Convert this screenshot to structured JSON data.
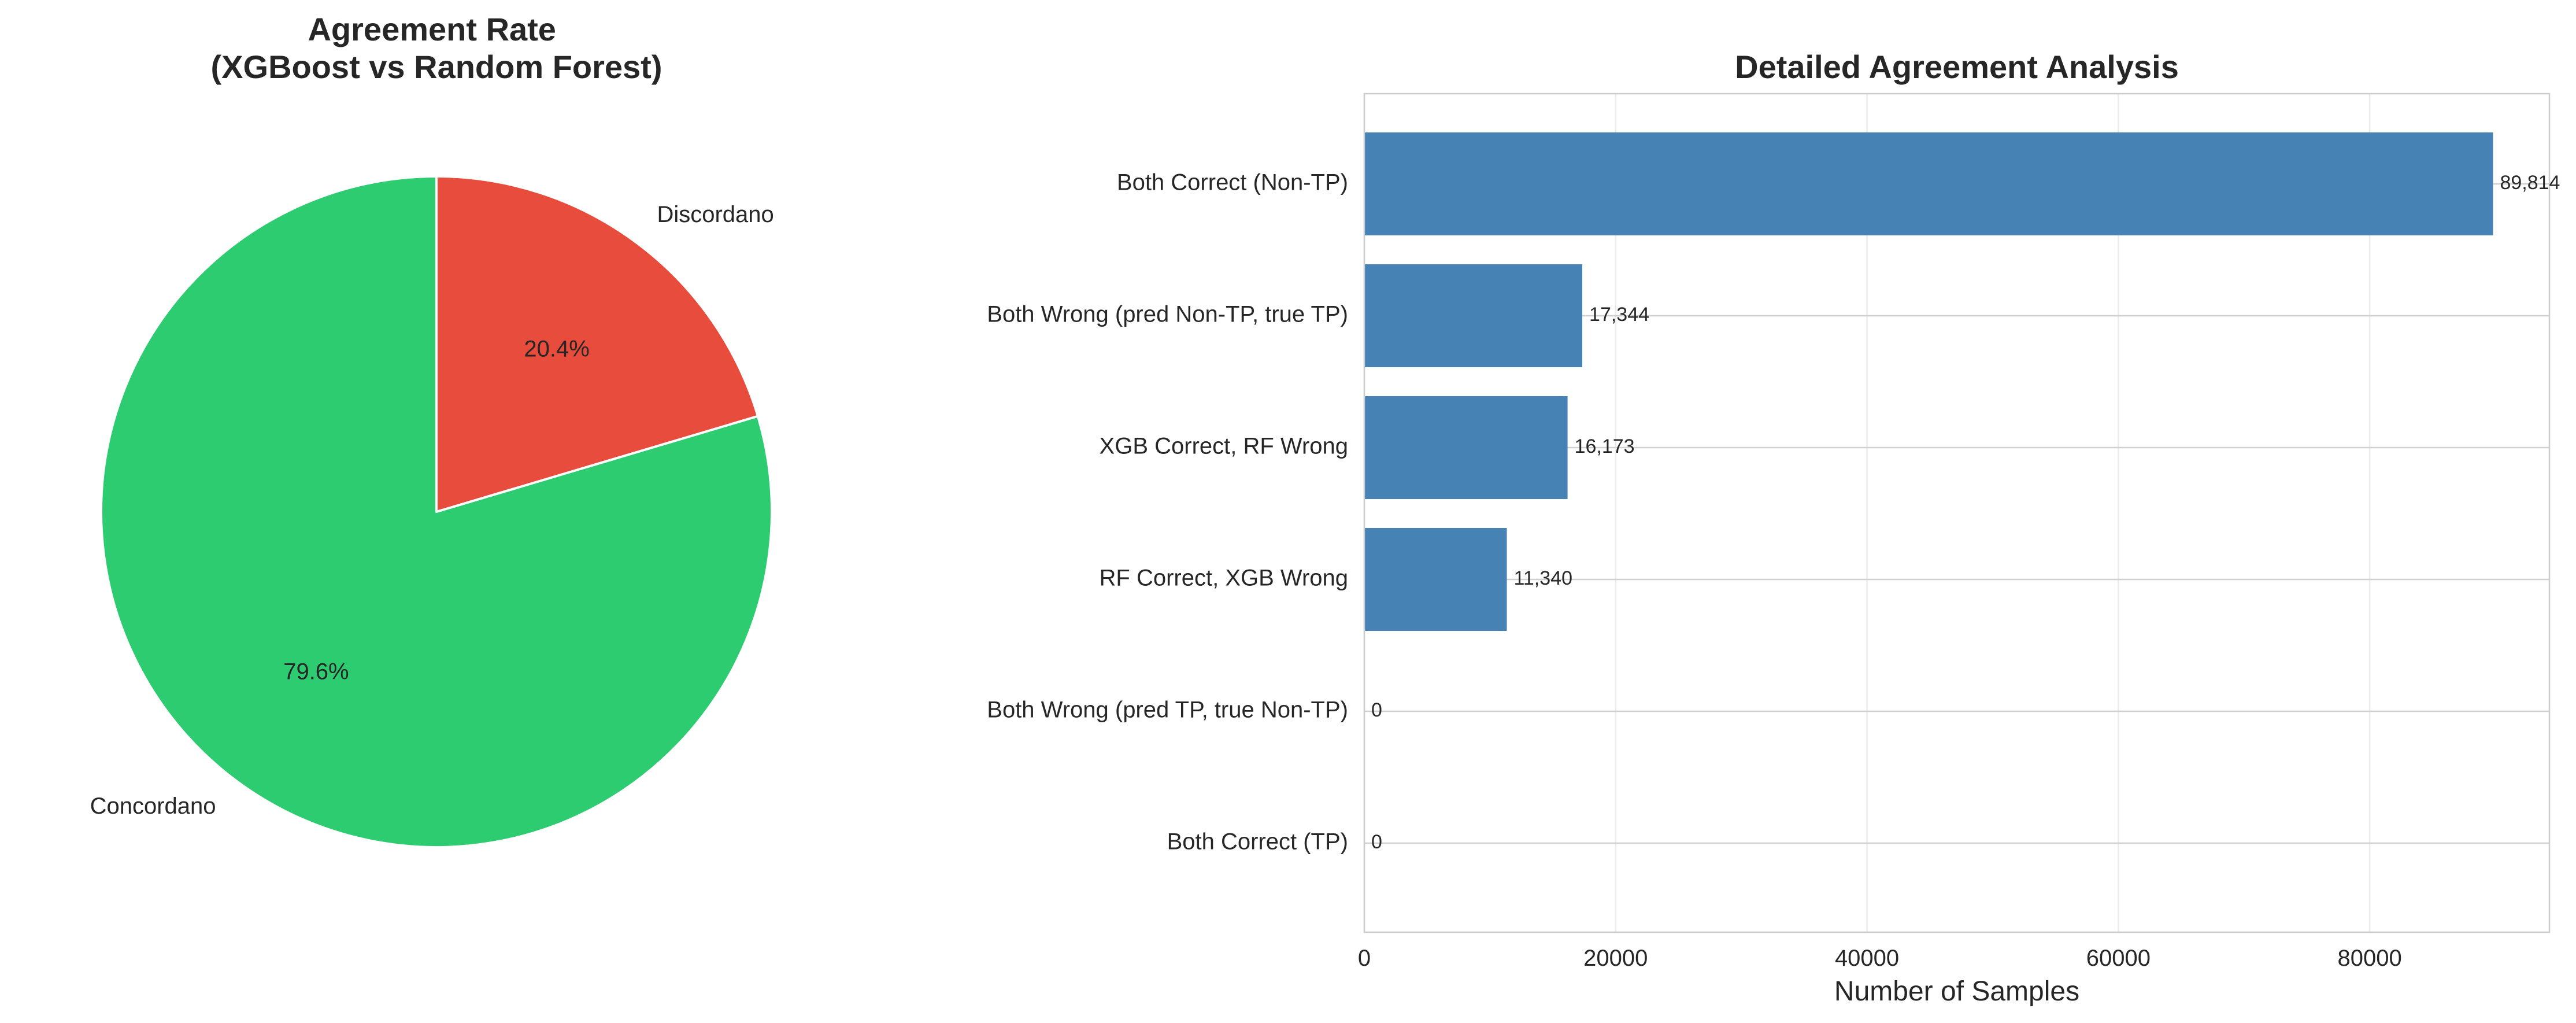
{
  "chart_data": [
    {
      "type": "pie",
      "title": "Agreement Rate\n(XGBoost vs Random Forest)",
      "labels": [
        "Discordano",
        "Concordano"
      ],
      "values": [
        20.4,
        79.6
      ],
      "autopct": [
        "20.4%",
        "79.6%"
      ],
      "colors": [
        "#e74c3c",
        "#2ecc71"
      ],
      "startangle_deg": 90,
      "direction": "clockwise"
    },
    {
      "type": "bar",
      "orientation": "horizontal",
      "title": "Detailed Agreement Analysis",
      "xlabel": "Number of Samples",
      "ylabel": "",
      "categories": [
        "Both Correct (Non-TP)",
        "Both Wrong (pred Non-TP, true TP)",
        "XGB Correct, RF Wrong",
        "RF Correct, XGB Wrong",
        "Both Wrong (pred TP, true Non-TP)",
        "Both Correct (TP)"
      ],
      "values": [
        89814,
        17344,
        16173,
        11340,
        0,
        0
      ],
      "value_labels": [
        "89,814",
        "17,344",
        "16,173",
        "11,340",
        "0",
        "0"
      ],
      "xticks": [
        0,
        20000,
        40000,
        60000,
        80000
      ],
      "xtick_labels": [
        "0",
        "20000",
        "40000",
        "60000",
        "80000"
      ],
      "xlim": [
        0,
        94300
      ],
      "bar_color": "#4682b4",
      "grid": true
    }
  ]
}
